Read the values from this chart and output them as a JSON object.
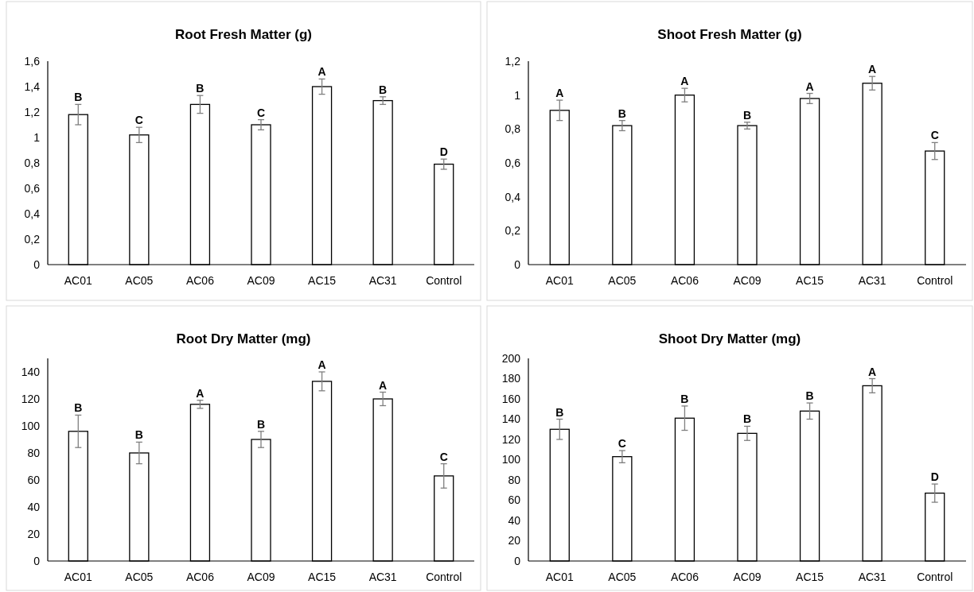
{
  "chart_data": [
    {
      "type": "bar",
      "title": "Root Fresh Matter (g)",
      "categories": [
        "AC01",
        "AC05",
        "AC06",
        "AC09",
        "AC15",
        "AC31",
        "Control"
      ],
      "color": "#ffffff",
      "values": [
        1.18,
        1.02,
        1.26,
        1.1,
        1.4,
        1.29,
        0.79
      ],
      "errors": [
        0.08,
        0.06,
        0.07,
        0.04,
        0.06,
        0.03,
        0.04
      ],
      "ylim": [
        0,
        1.6
      ],
      "yticks": [
        0,
        {
          "value": 0.2,
          "label": "0,2"
        },
        {
          "value": 0.4,
          "label": "0,4"
        },
        {
          "value": 0.6,
          "label": "0,6"
        },
        {
          "value": 0.8,
          "label": "0,8"
        },
        1,
        {
          "value": 1.2,
          "label": "1,2"
        },
        {
          "value": 1.4,
          "label": "1,4"
        },
        {
          "value": 1.6,
          "label": "1,6"
        }
      ],
      "annotations": [
        {
          "text": "B",
          "x": "AC01",
          "y": 1.26
        },
        {
          "text": "C",
          "x": "AC05",
          "y": 1.08
        },
        {
          "text": "B",
          "x": "AC06",
          "y": 1.33
        },
        {
          "text": "C",
          "x": "AC09",
          "y": 1.14
        },
        {
          "text": "A",
          "x": "AC15",
          "y": 1.46
        },
        {
          "text": "B",
          "x": "AC31",
          "y": 1.32
        },
        {
          "text": "D",
          "x": "Control",
          "y": 0.83
        }
      ]
    },
    {
      "type": "bar",
      "title": "Shoot Fresh Matter (g)",
      "categories": [
        "AC01",
        "AC05",
        "AC06",
        "AC09",
        "AC15",
        "AC31",
        "Control"
      ],
      "color": "#ffffff",
      "values": [
        0.91,
        0.82,
        1.0,
        0.82,
        0.98,
        1.07,
        0.67
      ],
      "errors": [
        0.06,
        0.03,
        0.04,
        0.02,
        0.03,
        0.04,
        0.05
      ],
      "ylim": [
        0,
        1.2
      ],
      "yticks": [
        0,
        {
          "value": 0.2,
          "label": "0,2"
        },
        {
          "value": 0.4,
          "label": "0,4"
        },
        {
          "value": 0.6,
          "label": "0,6"
        },
        {
          "value": 0.8,
          "label": "0,8"
        },
        1,
        {
          "value": 1.2,
          "label": "1,2"
        }
      ],
      "annotations": [
        {
          "text": "A",
          "x": "AC01",
          "y": 0.97
        },
        {
          "text": "B",
          "x": "AC05",
          "y": 0.85
        },
        {
          "text": "A",
          "x": "AC06",
          "y": 1.04
        },
        {
          "text": "B",
          "x": "AC09",
          "y": 0.84
        },
        {
          "text": "A",
          "x": "AC15",
          "y": 1.01
        },
        {
          "text": "A",
          "x": "AC31",
          "y": 1.11
        },
        {
          "text": "C",
          "x": "Control",
          "y": 0.72
        }
      ]
    },
    {
      "type": "bar",
      "title": "Root Dry Matter (mg)",
      "categories": [
        "AC01",
        "AC05",
        "AC06",
        "AC09",
        "AC15",
        "AC31",
        "Control"
      ],
      "color": "#ffffff",
      "values": [
        96,
        80,
        116,
        90,
        133,
        120,
        63
      ],
      "errors": [
        12,
        8,
        3,
        6,
        7,
        5,
        9
      ],
      "ylim": [
        0,
        150
      ],
      "yticks": [
        0,
        20,
        40,
        60,
        80,
        100,
        120,
        140
      ],
      "annotations": [
        {
          "text": "B",
          "x": "AC01",
          "y": 108
        },
        {
          "text": "B",
          "x": "AC05",
          "y": 88
        },
        {
          "text": "A",
          "x": "AC06",
          "y": 119
        },
        {
          "text": "B",
          "x": "AC09",
          "y": 96
        },
        {
          "text": "A",
          "x": "AC15",
          "y": 140
        },
        {
          "text": "A",
          "x": "AC31",
          "y": 125
        },
        {
          "text": "C",
          "x": "Control",
          "y": 72
        }
      ]
    },
    {
      "type": "bar",
      "title": "Shoot Dry Matter (mg)",
      "categories": [
        "AC01",
        "AC05",
        "AC06",
        "AC09",
        "AC15",
        "AC31",
        "Control"
      ],
      "color": "#ffffff",
      "values": [
        130,
        103,
        141,
        126,
        148,
        173,
        67
      ],
      "errors": [
        10,
        6,
        12,
        7,
        8,
        7,
        9
      ],
      "ylim": [
        0,
        200
      ],
      "yticks": [
        0,
        20,
        40,
        60,
        80,
        100,
        120,
        140,
        160,
        180,
        200
      ],
      "annotations": [
        {
          "text": "B",
          "x": "AC01",
          "y": 140
        },
        {
          "text": "C",
          "x": "AC05",
          "y": 109
        },
        {
          "text": "B",
          "x": "AC06",
          "y": 153
        },
        {
          "text": "B",
          "x": "AC09",
          "y": 133
        },
        {
          "text": "B",
          "x": "AC15",
          "y": 156
        },
        {
          "text": "A",
          "x": "AC31",
          "y": 180
        },
        {
          "text": "D",
          "x": "Control",
          "y": 76
        }
      ]
    }
  ]
}
